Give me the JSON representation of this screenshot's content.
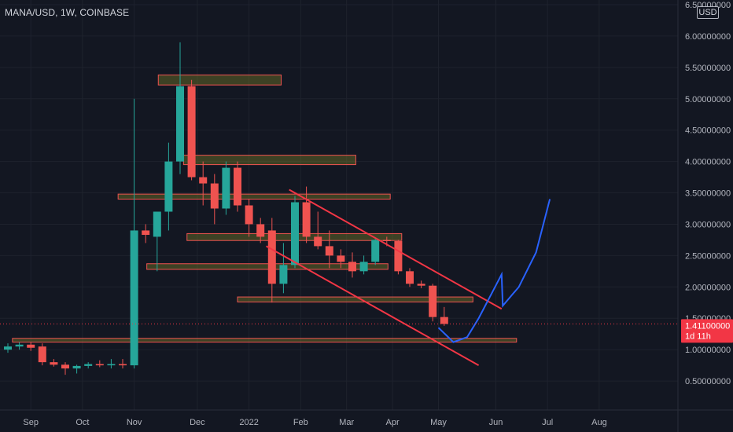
{
  "header": {
    "symbol_label": "MANA/USD, 1W, COINBASE",
    "currency_label": "USD"
  },
  "price_tag": {
    "price": "1.41100000",
    "countdown": "1d 11h",
    "value": 1.411,
    "color": "#f23645"
  },
  "chart_data": {
    "type": "candlestick",
    "ylim": [
      0,
      6.5
    ],
    "y_ticks": [
      {
        "value": 6.5,
        "label": "6.50000000"
      },
      {
        "value": 6.0,
        "label": "6.00000000"
      },
      {
        "value": 5.5,
        "label": "5.50000000"
      },
      {
        "value": 5.0,
        "label": "5.00000000"
      },
      {
        "value": 4.5,
        "label": "4.50000000"
      },
      {
        "value": 4.0,
        "label": "4.00000000"
      },
      {
        "value": 3.5,
        "label": "3.50000000"
      },
      {
        "value": 3.0,
        "label": "3.00000000"
      },
      {
        "value": 2.5,
        "label": "2.50000000"
      },
      {
        "value": 2.0,
        "label": "2.00000000"
      },
      {
        "value": 1.5,
        "label": "1.50000000"
      },
      {
        "value": 1.0,
        "label": "1.00000000"
      },
      {
        "value": 0.5,
        "label": "0.50000000"
      }
    ],
    "x_ticks": [
      "Sep",
      "Oct",
      "Nov",
      "Dec",
      "2022",
      "Feb",
      "Mar",
      "Apr",
      "May",
      "Jun",
      "Jul",
      "Aug"
    ],
    "x_tick_weeks": [
      2,
      6.5,
      11,
      16.5,
      21,
      25.5,
      29.5,
      33.5,
      37.5,
      42.5,
      47,
      51.5
    ],
    "up_color": "#26a69a",
    "down_color": "#ef5350",
    "candles": [
      {
        "week": 0,
        "open": 1.0,
        "high": 1.1,
        "low": 0.95,
        "close": 1.05
      },
      {
        "week": 1,
        "open": 1.05,
        "high": 1.12,
        "low": 1.0,
        "close": 1.08
      },
      {
        "week": 2,
        "open": 1.08,
        "high": 1.12,
        "low": 0.98,
        "close": 1.03
      },
      {
        "week": 3,
        "open": 1.05,
        "high": 1.1,
        "low": 0.75,
        "close": 0.8
      },
      {
        "week": 4,
        "open": 0.8,
        "high": 0.85,
        "low": 0.73,
        "close": 0.76
      },
      {
        "week": 5,
        "open": 0.76,
        "high": 0.8,
        "low": 0.6,
        "close": 0.7
      },
      {
        "week": 6,
        "open": 0.7,
        "high": 0.76,
        "low": 0.62,
        "close": 0.74
      },
      {
        "week": 7,
        "open": 0.74,
        "high": 0.8,
        "low": 0.7,
        "close": 0.77
      },
      {
        "week": 8,
        "open": 0.77,
        "high": 0.83,
        "low": 0.72,
        "close": 0.75
      },
      {
        "week": 9,
        "open": 0.75,
        "high": 0.85,
        "low": 0.7,
        "close": 0.77
      },
      {
        "week": 10,
        "open": 0.77,
        "high": 0.85,
        "low": 0.7,
        "close": 0.75
      },
      {
        "week": 11,
        "open": 0.75,
        "high": 5.0,
        "low": 0.7,
        "close": 2.9
      },
      {
        "week": 12,
        "open": 2.9,
        "high": 3.0,
        "low": 2.7,
        "close": 2.83
      },
      {
        "week": 13,
        "open": 2.8,
        "high": 3.2,
        "low": 2.25,
        "close": 3.2
      },
      {
        "week": 14,
        "open": 3.2,
        "high": 4.3,
        "low": 2.9,
        "close": 4.0
      },
      {
        "week": 15,
        "open": 4.0,
        "high": 5.9,
        "low": 3.8,
        "close": 5.2
      },
      {
        "week": 16,
        "open": 5.2,
        "high": 5.3,
        "low": 3.7,
        "close": 3.75
      },
      {
        "week": 17,
        "open": 3.75,
        "high": 4.0,
        "low": 3.3,
        "close": 3.65
      },
      {
        "week": 18,
        "open": 3.65,
        "high": 3.8,
        "low": 3.0,
        "close": 3.25
      },
      {
        "week": 19,
        "open": 3.25,
        "high": 4.0,
        "low": 3.15,
        "close": 3.9
      },
      {
        "week": 20,
        "open": 3.9,
        "high": 4.0,
        "low": 3.2,
        "close": 3.3
      },
      {
        "week": 21,
        "open": 3.3,
        "high": 3.4,
        "low": 2.8,
        "close": 3.0
      },
      {
        "week": 22,
        "open": 3.0,
        "high": 3.1,
        "low": 2.7,
        "close": 2.8
      },
      {
        "week": 23,
        "open": 2.9,
        "high": 3.1,
        "low": 1.75,
        "close": 2.05
      },
      {
        "week": 24,
        "open": 2.05,
        "high": 2.7,
        "low": 1.9,
        "close": 2.35
      },
      {
        "week": 25,
        "open": 2.35,
        "high": 3.45,
        "low": 2.3,
        "close": 3.35
      },
      {
        "week": 26,
        "open": 3.35,
        "high": 3.6,
        "low": 2.7,
        "close": 2.8
      },
      {
        "week": 27,
        "open": 2.8,
        "high": 3.2,
        "low": 2.6,
        "close": 2.65
      },
      {
        "week": 28,
        "open": 2.65,
        "high": 2.9,
        "low": 2.3,
        "close": 2.5
      },
      {
        "week": 29,
        "open": 2.5,
        "high": 2.6,
        "low": 2.3,
        "close": 2.4
      },
      {
        "week": 30,
        "open": 2.4,
        "high": 2.55,
        "low": 2.15,
        "close": 2.25
      },
      {
        "week": 31,
        "open": 2.25,
        "high": 2.5,
        "low": 2.2,
        "close": 2.4
      },
      {
        "week": 32,
        "open": 2.4,
        "high": 2.78,
        "low": 2.35,
        "close": 2.75
      },
      {
        "week": 33,
        "open": 2.75,
        "high": 2.8,
        "low": 2.65,
        "close": 2.73
      },
      {
        "week": 34,
        "open": 2.73,
        "high": 2.75,
        "low": 2.2,
        "close": 2.25
      },
      {
        "week": 35,
        "open": 2.25,
        "high": 2.3,
        "low": 2.0,
        "close": 2.05
      },
      {
        "week": 36,
        "open": 2.05,
        "high": 2.1,
        "low": 1.98,
        "close": 2.02
      },
      {
        "week": 37,
        "open": 2.02,
        "high": 2.05,
        "low": 1.45,
        "close": 1.52
      },
      {
        "week": 38,
        "open": 1.52,
        "high": 1.68,
        "low": 1.38,
        "close": 1.41
      }
    ],
    "zones": [
      {
        "w0": 13.1,
        "w1": 23.8,
        "low": 5.22,
        "high": 5.38,
        "color": "#ef5350"
      },
      {
        "w0": 15.3,
        "w1": 30.3,
        "low": 3.95,
        "high": 4.1,
        "color": "#ef5350"
      },
      {
        "w0": 9.6,
        "w1": 33.3,
        "low": 3.4,
        "high": 3.48,
        "color": "#ef5350"
      },
      {
        "w0": 15.6,
        "w1": 34.3,
        "low": 2.74,
        "high": 2.85,
        "color": "#ef5350"
      },
      {
        "w0": 12.1,
        "w1": 33.1,
        "low": 2.28,
        "high": 2.37,
        "color": "#ef5350"
      },
      {
        "w0": 20.0,
        "w1": 40.5,
        "low": 1.76,
        "high": 1.84,
        "color": "#ef5350"
      },
      {
        "w0": 0.4,
        "w1": 44.3,
        "low": 1.12,
        "high": 1.18,
        "color": "#ef5350"
      }
    ],
    "channel_lines": [
      {
        "w0": 24.5,
        "p0": 3.55,
        "w1": 43.0,
        "p1": 1.65,
        "color": "#f23645"
      },
      {
        "w0": 22.5,
        "p0": 2.65,
        "w1": 41.0,
        "p1": 0.75,
        "color": "#f23645"
      }
    ],
    "projection": {
      "color": "#2962ff",
      "points": [
        [
          37.5,
          1.35
        ],
        [
          38.8,
          1.12
        ],
        [
          40.0,
          1.2
        ],
        [
          41.0,
          1.5
        ],
        [
          42.0,
          1.85
        ],
        [
          43.0,
          2.2
        ],
        [
          43.1,
          1.7
        ],
        [
          44.5,
          2.0
        ],
        [
          46.0,
          2.55
        ],
        [
          47.2,
          3.4
        ]
      ]
    }
  }
}
